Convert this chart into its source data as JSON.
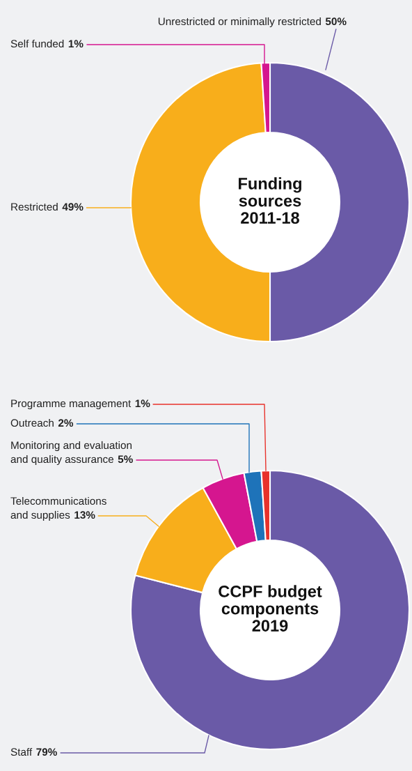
{
  "chart_data": [
    {
      "type": "donut",
      "title": "Funding sources 2011-18",
      "categories": [
        "Unrestricted or minimally restricted",
        "Restricted",
        "Self funded"
      ],
      "values": [
        50,
        49,
        1
      ],
      "value_labels": [
        "50%",
        "49%",
        "1%"
      ],
      "colors": [
        "#6a5aa7",
        "#f8ae1b",
        "#d5168f"
      ]
    },
    {
      "type": "donut",
      "title": "CCPF budget components 2019",
      "categories": [
        "Staff",
        "Telecommunications and supplies",
        "Monitoring and evaluation and quality assurance",
        "Outreach",
        "Programme management"
      ],
      "values": [
        79,
        13,
        5,
        2,
        1
      ],
      "value_labels": [
        "79%",
        "13%",
        "5%",
        "2%",
        "1%"
      ],
      "colors": [
        "#6a5aa7",
        "#f8ae1b",
        "#d5168f",
        "#1e73b9",
        "#e8322b"
      ]
    }
  ]
}
